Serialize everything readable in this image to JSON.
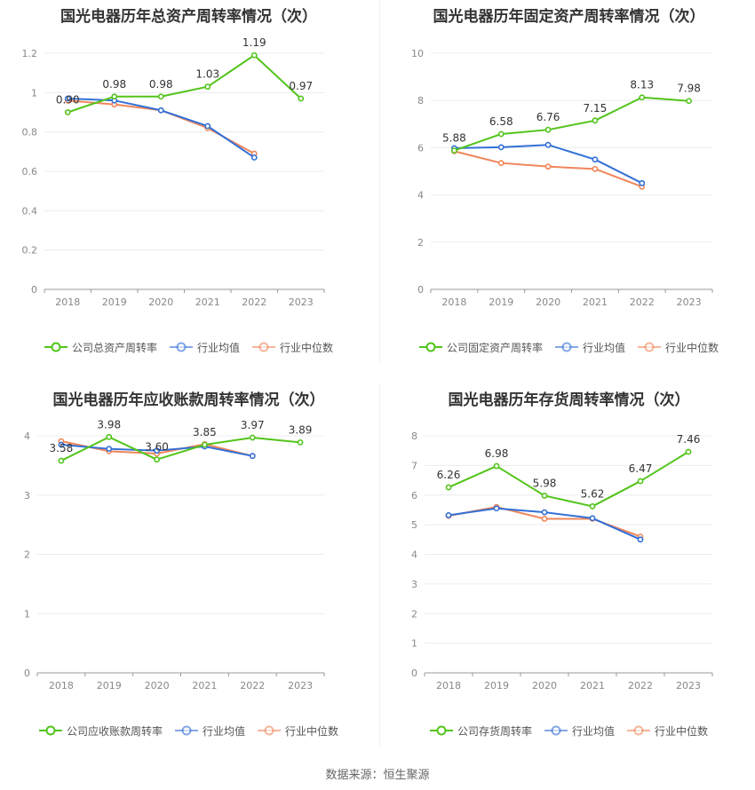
{
  "colors": {
    "company": "#52c41a",
    "avg": "#3370d6",
    "median": "#f0865a",
    "grid": "#e9ecf2",
    "axis": "#888888"
  },
  "footer": "数据来源：恒生聚源",
  "chart_data": [
    {
      "type": "line",
      "title": "国光电器历年总资产周转率情况（次）",
      "x": [
        "2018",
        "2019",
        "2020",
        "2021",
        "2022",
        "2023"
      ],
      "yticks": [
        "0",
        "0.2",
        "0.4",
        "0.6",
        "0.8",
        "1",
        "1.2"
      ],
      "ylim": [
        0,
        1.2
      ],
      "series": [
        {
          "name": "公司总资产周转率",
          "values": [
            0.9,
            0.98,
            0.98,
            1.03,
            1.19,
            0.97
          ],
          "labels": [
            "0.90",
            "0.98",
            "0.98",
            "1.03",
            "1.19",
            "0.97"
          ]
        },
        {
          "name": "行业均值",
          "values": [
            0.97,
            0.96,
            0.91,
            0.83,
            0.67,
            null
          ]
        },
        {
          "name": "行业中位数",
          "values": [
            0.96,
            0.94,
            0.91,
            0.82,
            0.69,
            null
          ]
        }
      ]
    },
    {
      "type": "line",
      "title": "国光电器历年固定资产周转率情况（次）",
      "x": [
        "2018",
        "2019",
        "2020",
        "2021",
        "2022",
        "2023"
      ],
      "yticks": [
        "0",
        "2",
        "4",
        "6",
        "8",
        "10"
      ],
      "ylim": [
        0,
        10
      ],
      "series": [
        {
          "name": "公司固定资产周转率",
          "values": [
            5.88,
            6.58,
            6.76,
            7.15,
            8.13,
            7.98
          ],
          "labels": [
            "5.88",
            "6.58",
            "6.76",
            "7.15",
            "8.13",
            "7.98"
          ]
        },
        {
          "name": "行业均值",
          "values": [
            5.98,
            6.02,
            6.12,
            5.5,
            4.5,
            null
          ]
        },
        {
          "name": "行业中位数",
          "values": [
            5.85,
            5.35,
            5.2,
            5.1,
            4.35,
            null
          ]
        }
      ]
    },
    {
      "type": "line",
      "title": "国光电器历年应收账款周转率情况（次）",
      "x": [
        "2018",
        "2019",
        "2020",
        "2021",
        "2022",
        "2023"
      ],
      "yticks": [
        "0",
        "1",
        "2",
        "3",
        "4"
      ],
      "ylim": [
        0,
        4
      ],
      "series": [
        {
          "name": "公司应收账款周转率",
          "values": [
            3.58,
            3.98,
            3.6,
            3.85,
            3.97,
            3.89
          ],
          "labels": [
            "3.58",
            "3.98",
            "3.60",
            "3.85",
            "3.97",
            "3.89"
          ]
        },
        {
          "name": "行业均值",
          "values": [
            3.85,
            3.78,
            3.75,
            3.82,
            3.66,
            null
          ]
        },
        {
          "name": "行业中位数",
          "values": [
            3.91,
            3.74,
            3.7,
            3.86,
            3.66,
            null
          ]
        }
      ]
    },
    {
      "type": "line",
      "title": "国光电器历年存货周转率情况（次）",
      "x": [
        "2018",
        "2019",
        "2020",
        "2021",
        "2022",
        "2023"
      ],
      "yticks": [
        "0",
        "1",
        "2",
        "3",
        "4",
        "5",
        "6",
        "7",
        "8"
      ],
      "ylim": [
        0,
        8
      ],
      "series": [
        {
          "name": "公司存货周转率",
          "values": [
            6.26,
            6.98,
            5.98,
            5.62,
            6.47,
            7.46
          ],
          "labels": [
            "6.26",
            "6.98",
            "5.98",
            "5.62",
            "6.47",
            "7.46"
          ]
        },
        {
          "name": "行业均值",
          "values": [
            5.32,
            5.55,
            5.42,
            5.22,
            4.5,
            null
          ]
        },
        {
          "name": "行业中位数",
          "values": [
            5.3,
            5.6,
            5.2,
            5.2,
            4.6,
            null
          ]
        }
      ]
    }
  ]
}
